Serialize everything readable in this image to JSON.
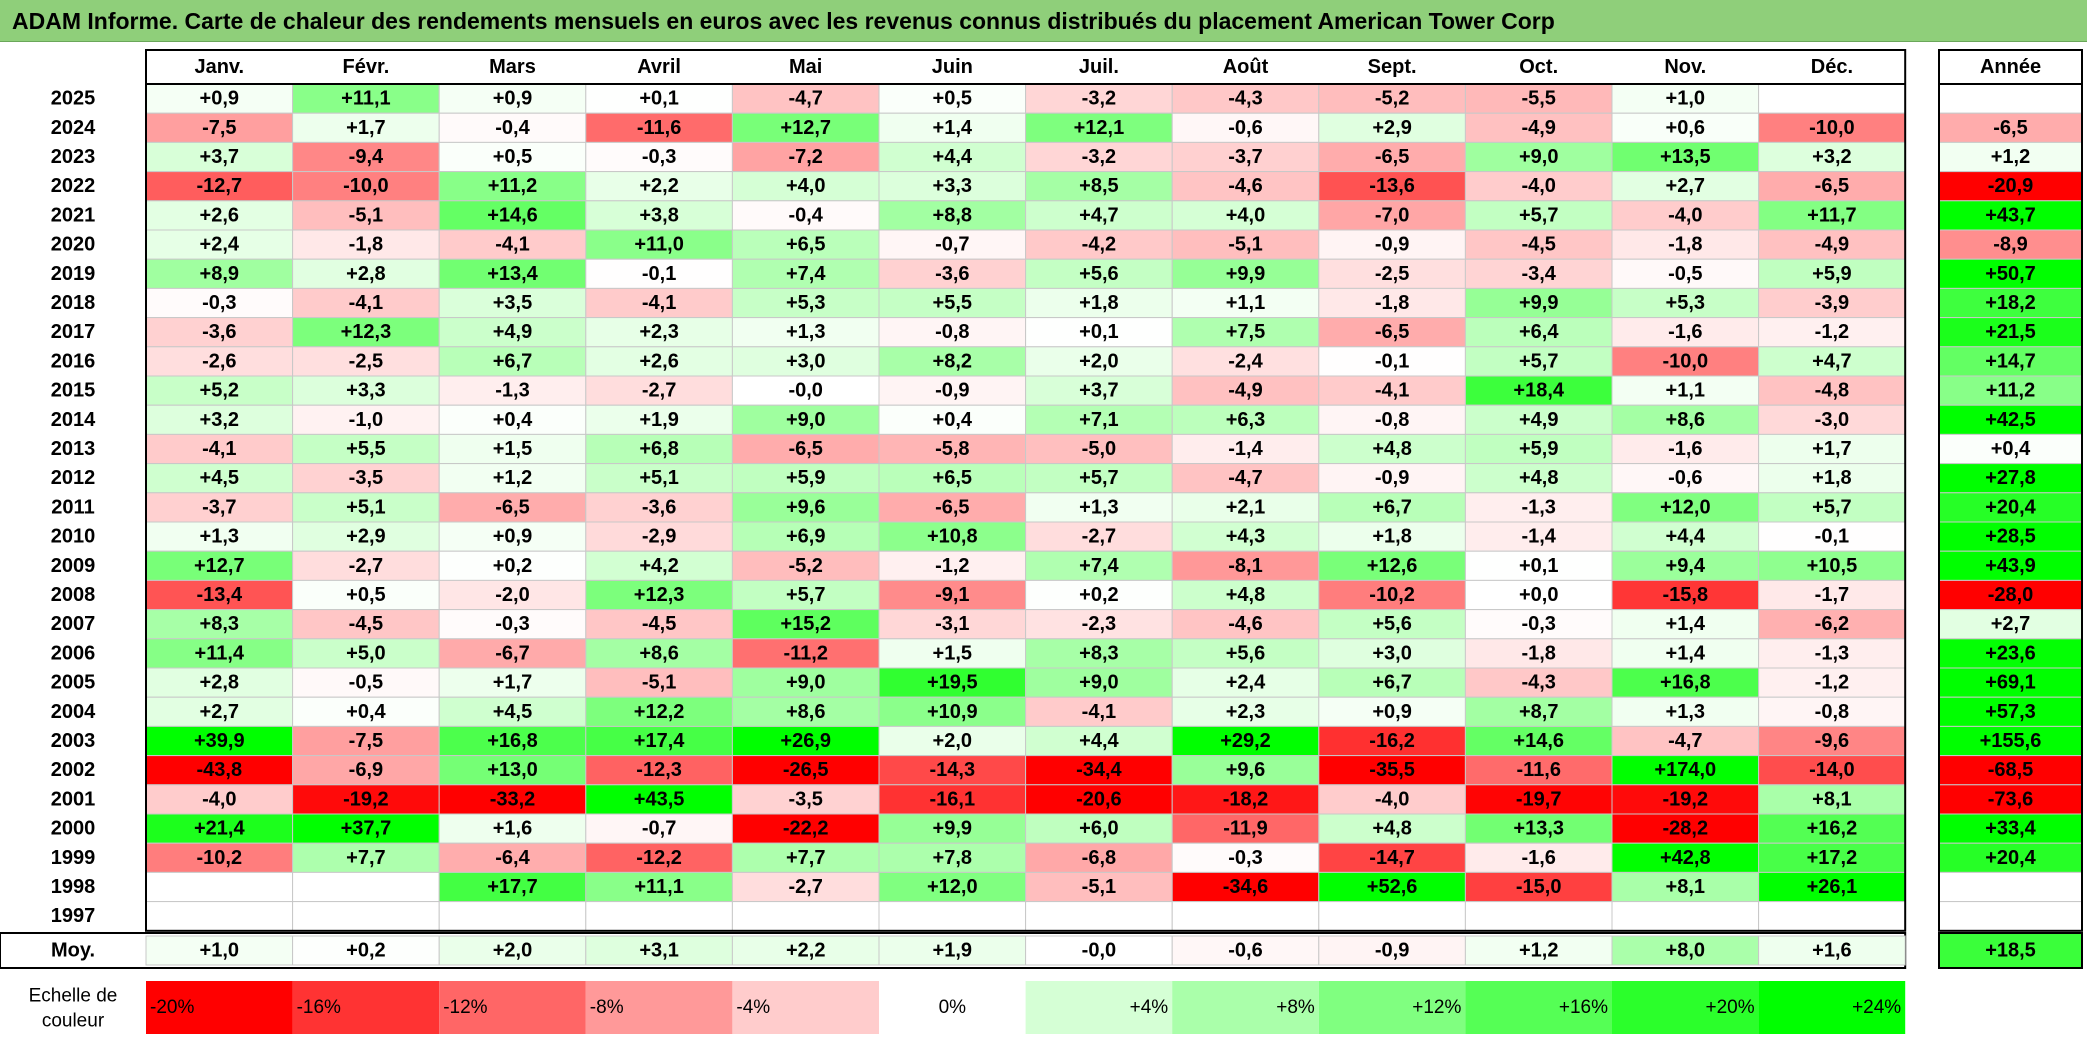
{
  "title": "ADAM Informe. Carte de chaleur des rendements mensuels en euros avec les revenus connus distribués du placement American Tower Corp",
  "chart_data": {
    "type": "heatmap",
    "months": [
      "Janv.",
      "Févr.",
      "Mars",
      "Avril",
      "Mai",
      "Juin",
      "Juil.",
      "Août",
      "Sept.",
      "Oct.",
      "Nov.",
      "Déc."
    ],
    "annual_header": "Année",
    "years": [
      "2025",
      "2024",
      "2023",
      "2022",
      "2021",
      "2020",
      "2019",
      "2018",
      "2017",
      "2016",
      "2015",
      "2014",
      "2013",
      "2012",
      "2011",
      "2010",
      "2009",
      "2008",
      "2007",
      "2006",
      "2005",
      "2004",
      "2003",
      "2002",
      "2001",
      "2000",
      "1999",
      "1998",
      "1997"
    ],
    "values": [
      [
        "+0,9",
        "+11,1",
        "+0,9",
        "+0,1",
        "-4,7",
        "+0,5",
        "-3,2",
        "-4,3",
        "-5,2",
        "-5,5",
        "+1,0",
        ""
      ],
      [
        "-7,5",
        "+1,7",
        "-0,4",
        "-11,6",
        "+12,7",
        "+1,4",
        "+12,1",
        "-0,6",
        "+2,9",
        "-4,9",
        "+0,6",
        "-10,0"
      ],
      [
        "+3,7",
        "-9,4",
        "+0,5",
        "-0,3",
        "-7,2",
        "+4,4",
        "-3,2",
        "-3,7",
        "-6,5",
        "+9,0",
        "+13,5",
        "+3,2"
      ],
      [
        "-12,7",
        "-10,0",
        "+11,2",
        "+2,2",
        "+4,0",
        "+3,3",
        "+8,5",
        "-4,6",
        "-13,6",
        "-4,0",
        "+2,7",
        "-6,5"
      ],
      [
        "+2,6",
        "-5,1",
        "+14,6",
        "+3,8",
        "-0,4",
        "+8,8",
        "+4,7",
        "+4,0",
        "-7,0",
        "+5,7",
        "-4,0",
        "+11,7"
      ],
      [
        "+2,4",
        "-1,8",
        "-4,1",
        "+11,0",
        "+6,5",
        "-0,7",
        "-4,2",
        "-5,1",
        "-0,9",
        "-4,5",
        "-1,8",
        "-4,9"
      ],
      [
        "+8,9",
        "+2,8",
        "+13,4",
        "-0,1",
        "+7,4",
        "-3,6",
        "+5,6",
        "+9,9",
        "-2,5",
        "-3,4",
        "-0,5",
        "+5,9"
      ],
      [
        "-0,3",
        "-4,1",
        "+3,5",
        "-4,1",
        "+5,3",
        "+5,5",
        "+1,8",
        "+1,1",
        "-1,8",
        "+9,9",
        "+5,3",
        "-3,9"
      ],
      [
        "-3,6",
        "+12,3",
        "+4,9",
        "+2,3",
        "+1,3",
        "-0,8",
        "+0,1",
        "+7,5",
        "-6,5",
        "+6,4",
        "-1,6",
        "-1,2"
      ],
      [
        "-2,6",
        "-2,5",
        "+6,7",
        "+2,6",
        "+3,0",
        "+8,2",
        "+2,0",
        "-2,4",
        "-0,1",
        "+5,7",
        "-10,0",
        "+4,7"
      ],
      [
        "+5,2",
        "+3,3",
        "-1,3",
        "-2,7",
        "-0,0",
        "-0,9",
        "+3,7",
        "-4,9",
        "-4,1",
        "+18,4",
        "+1,1",
        "-4,8"
      ],
      [
        "+3,2",
        "-1,0",
        "+0,4",
        "+1,9",
        "+9,0",
        "+0,4",
        "+7,1",
        "+6,3",
        "-0,8",
        "+4,9",
        "+8,6",
        "-3,0"
      ],
      [
        "-4,1",
        "+5,5",
        "+1,5",
        "+6,8",
        "-6,5",
        "-5,8",
        "-5,0",
        "-1,4",
        "+4,8",
        "+5,9",
        "-1,6",
        "+1,7"
      ],
      [
        "+4,5",
        "-3,5",
        "+1,2",
        "+5,1",
        "+5,9",
        "+6,5",
        "+5,7",
        "-4,7",
        "-0,9",
        "+4,8",
        "-0,6",
        "+1,8"
      ],
      [
        "-3,7",
        "+5,1",
        "-6,5",
        "-3,6",
        "+9,6",
        "-6,5",
        "+1,3",
        "+2,1",
        "+6,7",
        "-1,3",
        "+12,0",
        "+5,7"
      ],
      [
        "+1,3",
        "+2,9",
        "+0,9",
        "-2,9",
        "+6,9",
        "+10,8",
        "-2,7",
        "+4,3",
        "+1,8",
        "-1,4",
        "+4,4",
        "-0,1"
      ],
      [
        "+12,7",
        "-2,7",
        "+0,2",
        "+4,2",
        "-5,2",
        "-1,2",
        "+7,4",
        "-8,1",
        "+12,6",
        "+0,1",
        "+9,4",
        "+10,5"
      ],
      [
        "-13,4",
        "+0,5",
        "-2,0",
        "+12,3",
        "+5,7",
        "-9,1",
        "+0,2",
        "+4,8",
        "-10,2",
        "+0,0",
        "-15,8",
        "-1,7"
      ],
      [
        "+8,3",
        "-4,5",
        "-0,3",
        "-4,5",
        "+15,2",
        "-3,1",
        "-2,3",
        "-4,6",
        "+5,6",
        "-0,3",
        "+1,4",
        "-6,2"
      ],
      [
        "+11,4",
        "+5,0",
        "-6,7",
        "+8,6",
        "-11,2",
        "+1,5",
        "+8,3",
        "+5,6",
        "+3,0",
        "-1,8",
        "+1,4",
        "-1,3"
      ],
      [
        "+2,8",
        "-0,5",
        "+1,7",
        "-5,1",
        "+9,0",
        "+19,5",
        "+9,0",
        "+2,4",
        "+6,7",
        "-4,3",
        "+16,8",
        "-1,2"
      ],
      [
        "+2,7",
        "+0,4",
        "+4,5",
        "+12,2",
        "+8,6",
        "+10,9",
        "-4,1",
        "+2,3",
        "+0,9",
        "+8,7",
        "+1,3",
        "-0,8"
      ],
      [
        "+39,9",
        "-7,5",
        "+16,8",
        "+17,4",
        "+26,9",
        "+2,0",
        "+4,4",
        "+29,2",
        "-16,2",
        "+14,6",
        "-4,7",
        "-9,6"
      ],
      [
        "-43,8",
        "-6,9",
        "+13,0",
        "-12,3",
        "-26,5",
        "-14,3",
        "-34,4",
        "+9,6",
        "-35,5",
        "-11,6",
        "+174,0",
        "-14,0"
      ],
      [
        "-4,0",
        "-19,2",
        "-33,2",
        "+43,5",
        "-3,5",
        "-16,1",
        "-20,6",
        "-18,2",
        "-4,0",
        "-19,7",
        "-19,2",
        "+8,1"
      ],
      [
        "+21,4",
        "+37,7",
        "+1,6",
        "-0,7",
        "-22,2",
        "+9,9",
        "+6,0",
        "-11,9",
        "+4,8",
        "+13,3",
        "-28,2",
        "+16,2"
      ],
      [
        "-10,2",
        "+7,7",
        "-6,4",
        "-12,2",
        "+7,7",
        "+7,8",
        "-6,8",
        "-0,3",
        "-14,7",
        "-1,6",
        "+42,8",
        "+17,2"
      ],
      [
        "",
        "",
        "+17,7",
        "+11,1",
        "-2,7",
        "+12,0",
        "-5,1",
        "-34,6",
        "+52,6",
        "-15,0",
        "+8,1",
        "+26,1"
      ],
      [
        "",
        "",
        "",
        "",
        "",
        "",
        "",
        "",
        "",
        "",
        "",
        ""
      ]
    ],
    "annual": [
      "",
      "-6,5",
      "+1,2",
      "-20,9",
      "+43,7",
      "-8,9",
      "+50,7",
      "+18,2",
      "+21,5",
      "+14,7",
      "+11,2",
      "+42,5",
      "+0,4",
      "+27,8",
      "+20,4",
      "+28,5",
      "+43,9",
      "-28,0",
      "+2,7",
      "+23,6",
      "+69,1",
      "+57,3",
      "+155,6",
      "-68,5",
      "-73,6",
      "+33,4",
      "+20,4",
      "",
      ""
    ],
    "average_label": "Moy.",
    "averages": [
      "+1,0",
      "+0,2",
      "+2,0",
      "+3,1",
      "+2,2",
      "+1,9",
      "-0,0",
      "-0,6",
      "-0,9",
      "+1,2",
      "+8,0",
      "+1,6"
    ],
    "annual_average": "+18,5",
    "scale_label_lines": [
      "Echelle de",
      "couleur"
    ],
    "scale": [
      {
        "label": "-20%",
        "value": -20
      },
      {
        "label": "-16%",
        "value": -16
      },
      {
        "label": "-12%",
        "value": -12
      },
      {
        "label": "-8%",
        "value": -8
      },
      {
        "label": "-4%",
        "value": -4
      },
      {
        "label": "0%",
        "value": 0
      },
      {
        "label": "+4%",
        "value": 4
      },
      {
        "label": "+8%",
        "value": 8
      },
      {
        "label": "+12%",
        "value": 12
      },
      {
        "label": "+16%",
        "value": 16
      },
      {
        "label": "+20%",
        "value": 20
      },
      {
        "label": "+24%",
        "value": 24
      }
    ],
    "colors": {
      "negative": "#ff0000",
      "neutral": "#ffffff",
      "positive": "#00ff00",
      "title_bar": "#8fcf7a"
    }
  }
}
